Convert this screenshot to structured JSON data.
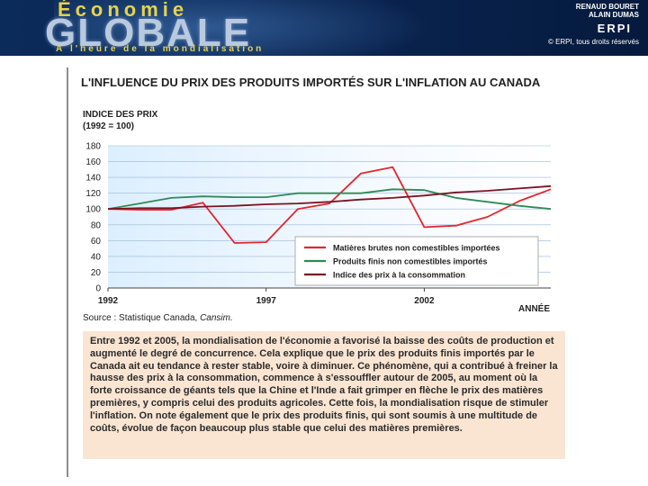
{
  "banner": {
    "eco_title": "Économie",
    "main_title": "GLOBALE",
    "tagline": "À l'heure de la mondialisation",
    "authors": "RENAUD BOURET\nALAIN DUMAS",
    "publisher": "ERPI",
    "copyright": "© ERPI, tous droits réservés"
  },
  "chart_data": {
    "type": "line",
    "title": "L'INFLUENCE DU PRIX DES PRODUITS IMPORTÉS SUR L'INFLATION AU CANADA",
    "ylabel": "INDICE DES PRIX",
    "ylabel_sub": "(1992 = 100)",
    "xlabel": "ANNÉE",
    "ylim": [
      0,
      180
    ],
    "yticks": [
      0,
      20,
      40,
      60,
      80,
      100,
      120,
      140,
      160,
      180
    ],
    "xlim": [
      1992,
      2006
    ],
    "xticks": [
      1992,
      1997,
      2002
    ],
    "grid": "horizontal",
    "legend_position": "bottom-right",
    "series": [
      {
        "name": "Matières brutes non comestibles importées",
        "color": "#e3262d",
        "x": [
          1992,
          1993,
          1994,
          1995,
          1996,
          1997,
          1998,
          1999,
          2000,
          2001,
          2002,
          2003,
          2004,
          2005,
          2006
        ],
        "values": [
          100,
          99,
          99,
          108,
          57,
          58,
          100,
          107,
          145,
          153,
          77,
          79,
          90,
          110,
          125
        ]
      },
      {
        "name": "Produits finis non comestibles importés",
        "color": "#2e8b57",
        "x": [
          1992,
          1993,
          1994,
          1995,
          1996,
          1997,
          1998,
          1999,
          2000,
          2001,
          2002,
          2003,
          2004,
          2005,
          2006
        ],
        "values": [
          100,
          107,
          114,
          116,
          115,
          115,
          120,
          120,
          120,
          125,
          124,
          114,
          109,
          104,
          100
        ]
      },
      {
        "name": "Indice des prix à la consommation",
        "color": "#7a1320",
        "x": [
          1992,
          1993,
          1994,
          1995,
          1996,
          1997,
          1998,
          1999,
          2000,
          2001,
          2002,
          2003,
          2004,
          2005,
          2006
        ],
        "values": [
          100,
          101,
          101,
          103,
          104,
          106,
          107,
          109,
          112,
          114,
          117,
          121,
          123,
          126,
          129
        ]
      }
    ]
  },
  "source": {
    "prefix": "Source : Statistique Canada, ",
    "italic": "Cansim."
  },
  "textbox": {
    "text": "Entre 1992 et 2005, la mondialisation de l'économie a favorisé la baisse des coûts de production et augmenté le degré de concurrence. Cela explique que le prix des produits finis importés par le Canada ait eu tendance à rester stable, voire à diminuer. Ce phénomène, qui a contribué à freiner la hausse des prix à la consommation, commence à s'essouffler autour de 2005, au moment où la forte croissance de géants tels que la Chine et l'Inde a fait grimper en flèche le prix des matières premières, y compris celui des produits agricoles. Cette fois, la mondialisation risque de stimuler l'inflation. On note également que le prix des produits finis, qui sont soumis à une multitude de coûts, évolue de façon beaucoup plus stable que celui des matières premières."
  }
}
